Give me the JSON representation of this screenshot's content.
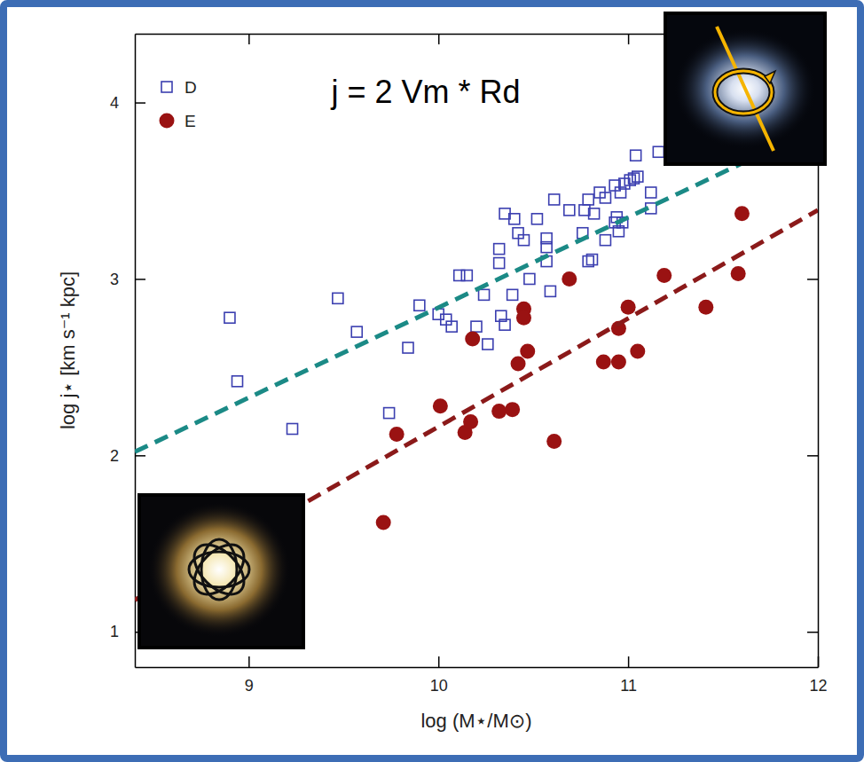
{
  "chart_data": {
    "type": "scatter",
    "annotation": "j = 2 Vm * Rd",
    "x_label": "log (M⋆/M⊙)",
    "y_label": "log j⋆ [km s⁻¹ kpc]",
    "xlim": [
      8.4,
      12
    ],
    "ylim": [
      0.8,
      4.39
    ],
    "xticks": [
      9,
      10,
      11,
      12
    ],
    "yticks": [
      1,
      2,
      3,
      4
    ],
    "legend": "upper left",
    "series": [
      {
        "name": "D",
        "type": "scatter",
        "marker": "square",
        "color": "#3b3fb0",
        "x": [
          8.9,
          8.94,
          9.47,
          9.57,
          9.23,
          9.74,
          9.84,
          9.9,
          10.0,
          10.04,
          10.11,
          10.15,
          10.07,
          10.24,
          10.2,
          10.26,
          10.35,
          10.4,
          10.42,
          10.45,
          10.32,
          10.32,
          10.33,
          10.35,
          10.39,
          10.52,
          10.48,
          10.57,
          10.57,
          10.57,
          10.59,
          10.61,
          10.69,
          10.77,
          10.76,
          10.79,
          10.81,
          10.79,
          10.85,
          10.88,
          10.82,
          10.93,
          10.96,
          10.94,
          10.93,
          10.97,
          10.98,
          11.01,
          11.03,
          11.04,
          11.05,
          10.88,
          10.95,
          11.12,
          11.12,
          11.16
        ],
        "values": [
          2.78,
          2.42,
          2.89,
          2.7,
          2.15,
          2.24,
          2.61,
          2.85,
          2.8,
          2.77,
          3.02,
          3.02,
          2.73,
          2.91,
          2.73,
          2.63,
          3.37,
          3.34,
          3.26,
          3.22,
          3.17,
          3.09,
          2.79,
          2.74,
          2.91,
          3.34,
          3.0,
          3.23,
          3.18,
          3.1,
          2.93,
          3.45,
          3.39,
          3.39,
          3.26,
          3.1,
          3.11,
          3.45,
          3.49,
          3.46,
          3.37,
          3.53,
          3.49,
          3.35,
          3.32,
          3.32,
          3.54,
          3.56,
          3.57,
          3.7,
          3.58,
          3.22,
          3.27,
          3.4,
          3.49,
          3.72
        ]
      },
      {
        "name": "E",
        "type": "scatter",
        "marker": "circle",
        "color": "#9a1212",
        "x": [
          9.71,
          9.78,
          10.01,
          10.14,
          10.17,
          10.18,
          10.32,
          10.39,
          10.42,
          10.45,
          10.45,
          10.47,
          10.61,
          10.69,
          10.87,
          10.95,
          10.95,
          11.0,
          11.05,
          11.19,
          11.41,
          11.58,
          11.6
        ],
        "values": [
          1.62,
          2.12,
          2.28,
          2.13,
          2.19,
          2.66,
          2.25,
          2.26,
          2.52,
          2.83,
          2.78,
          2.59,
          2.08,
          3.0,
          2.53,
          2.53,
          2.72,
          2.84,
          2.59,
          3.02,
          2.84,
          3.03,
          3.37
        ]
      },
      {
        "type": "line",
        "line_style": "dashed",
        "color": "#1b8a86",
        "x": [
          8.4,
          12
        ],
        "values": [
          2.02,
          3.86
        ]
      },
      {
        "type": "line",
        "line_style": "dashed",
        "color": "#8b1a1a",
        "x": [
          8.4,
          12
        ],
        "values": [
          1.18,
          3.39
        ]
      }
    ]
  }
}
